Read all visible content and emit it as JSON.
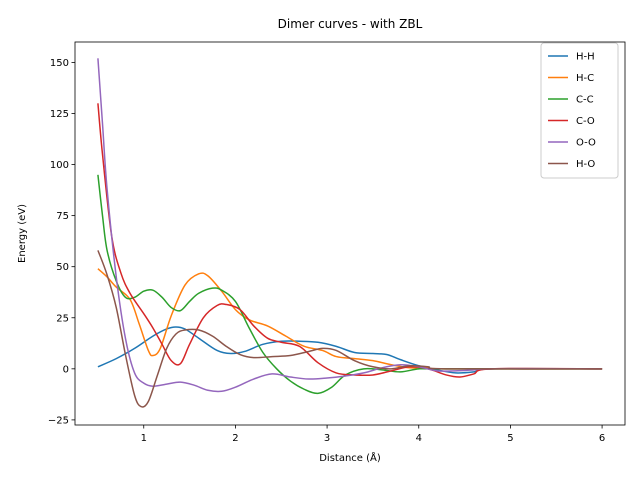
{
  "chart_data": {
    "type": "line",
    "title": "Dimer curves - with ZBL",
    "xlabel": "Distance (Å)",
    "ylabel": "Energy (eV)",
    "xlim": [
      0.25,
      6.25
    ],
    "ylim": [
      -27.5,
      160
    ],
    "xticks": [
      1,
      2,
      3,
      4,
      5,
      6
    ],
    "yticks": [
      -25,
      0,
      25,
      50,
      75,
      100,
      125,
      150
    ],
    "grid": false,
    "legend_position": "top-right",
    "series": [
      {
        "name": "H-H",
        "color": "#1f77b4",
        "points": [
          [
            0.5,
            1
          ],
          [
            0.7,
            5
          ],
          [
            0.9,
            10
          ],
          [
            1.1,
            16
          ],
          [
            1.25,
            19.5
          ],
          [
            1.35,
            20.5
          ],
          [
            1.45,
            19.5
          ],
          [
            1.6,
            15
          ],
          [
            1.8,
            9
          ],
          [
            1.95,
            7.5
          ],
          [
            2.1,
            8.5
          ],
          [
            2.3,
            12
          ],
          [
            2.5,
            13.5
          ],
          [
            2.7,
            13.5
          ],
          [
            2.9,
            13
          ],
          [
            3.1,
            11
          ],
          [
            3.3,
            8
          ],
          [
            3.5,
            7.5
          ],
          [
            3.65,
            7
          ],
          [
            3.8,
            4.5
          ],
          [
            4.0,
            1.5
          ],
          [
            4.2,
            -0.5
          ],
          [
            4.4,
            -2
          ],
          [
            4.6,
            -1.5
          ],
          [
            4.8,
            0
          ],
          [
            6.0,
            0
          ]
        ]
      },
      {
        "name": "H-C",
        "color": "#ff7f0e",
        "points": [
          [
            0.5,
            49
          ],
          [
            0.6,
            45
          ],
          [
            0.7,
            40
          ],
          [
            0.85,
            34
          ],
          [
            0.95,
            22
          ],
          [
            1.05,
            9
          ],
          [
            1.1,
            6.5
          ],
          [
            1.18,
            10
          ],
          [
            1.3,
            26
          ],
          [
            1.45,
            41
          ],
          [
            1.6,
            46.5
          ],
          [
            1.7,
            45.5
          ],
          [
            1.85,
            38
          ],
          [
            2.0,
            29
          ],
          [
            2.15,
            24
          ],
          [
            2.35,
            21
          ],
          [
            2.55,
            16
          ],
          [
            2.75,
            11
          ],
          [
            2.95,
            9
          ],
          [
            3.1,
            6
          ],
          [
            3.3,
            5
          ],
          [
            3.5,
            4
          ],
          [
            3.7,
            2
          ],
          [
            3.9,
            0.5
          ],
          [
            4.1,
            0.5
          ],
          [
            4.3,
            0
          ],
          [
            6.0,
            0
          ]
        ]
      },
      {
        "name": "C-C",
        "color": "#2ca02c",
        "points": [
          [
            0.5,
            95
          ],
          [
            0.55,
            75
          ],
          [
            0.6,
            58
          ],
          [
            0.7,
            43
          ],
          [
            0.8,
            35
          ],
          [
            0.9,
            35
          ],
          [
            1.0,
            38
          ],
          [
            1.1,
            38.5
          ],
          [
            1.2,
            35
          ],
          [
            1.3,
            30
          ],
          [
            1.4,
            28.5
          ],
          [
            1.5,
            33
          ],
          [
            1.6,
            37
          ],
          [
            1.75,
            39.5
          ],
          [
            1.85,
            38.5
          ],
          [
            2.0,
            33
          ],
          [
            2.15,
            20
          ],
          [
            2.3,
            8
          ],
          [
            2.45,
            0
          ],
          [
            2.6,
            -6
          ],
          [
            2.75,
            -10
          ],
          [
            2.9,
            -12
          ],
          [
            3.05,
            -9
          ],
          [
            3.2,
            -3
          ],
          [
            3.4,
            0
          ],
          [
            3.6,
            -0.5
          ],
          [
            3.8,
            -1.5
          ],
          [
            4.0,
            0
          ],
          [
            4.2,
            0
          ],
          [
            6.0,
            0
          ]
        ]
      },
      {
        "name": "C-O",
        "color": "#d62728",
        "points": [
          [
            0.5,
            130
          ],
          [
            0.55,
            105
          ],
          [
            0.65,
            65
          ],
          [
            0.75,
            47
          ],
          [
            0.85,
            37
          ],
          [
            1.0,
            27
          ],
          [
            1.1,
            20
          ],
          [
            1.2,
            12
          ],
          [
            1.3,
            4
          ],
          [
            1.4,
            2.5
          ],
          [
            1.5,
            12
          ],
          [
            1.65,
            25
          ],
          [
            1.8,
            31
          ],
          [
            1.9,
            31.5
          ],
          [
            2.05,
            29
          ],
          [
            2.2,
            21
          ],
          [
            2.35,
            15
          ],
          [
            2.5,
            13
          ],
          [
            2.7,
            11
          ],
          [
            2.9,
            3
          ],
          [
            3.1,
            -2
          ],
          [
            3.3,
            -3
          ],
          [
            3.5,
            -3
          ],
          [
            3.7,
            -1
          ],
          [
            3.9,
            1
          ],
          [
            4.1,
            0
          ],
          [
            4.3,
            -3
          ],
          [
            4.45,
            -4
          ],
          [
            4.6,
            -2.5
          ],
          [
            4.8,
            0
          ],
          [
            6.0,
            0
          ]
        ]
      },
      {
        "name": "O-O",
        "color": "#9467bd",
        "points": [
          [
            0.5,
            152
          ],
          [
            0.55,
            120
          ],
          [
            0.6,
            88
          ],
          [
            0.7,
            45
          ],
          [
            0.8,
            15
          ],
          [
            0.9,
            -2
          ],
          [
            1.0,
            -7
          ],
          [
            1.1,
            -8.5
          ],
          [
            1.25,
            -7.5
          ],
          [
            1.4,
            -6.5
          ],
          [
            1.55,
            -8
          ],
          [
            1.7,
            -10.5
          ],
          [
            1.85,
            -11
          ],
          [
            2.0,
            -9
          ],
          [
            2.2,
            -5
          ],
          [
            2.4,
            -2.5
          ],
          [
            2.6,
            -4
          ],
          [
            2.8,
            -5
          ],
          [
            3.0,
            -4.5
          ],
          [
            3.2,
            -3.5
          ],
          [
            3.4,
            -2
          ],
          [
            3.6,
            0.5
          ],
          [
            3.8,
            2
          ],
          [
            4.0,
            1
          ],
          [
            4.2,
            -1
          ],
          [
            4.4,
            -1
          ],
          [
            4.6,
            -0.5
          ],
          [
            4.8,
            0
          ],
          [
            6.0,
            0
          ]
        ]
      },
      {
        "name": "H-O",
        "color": "#8c564b",
        "points": [
          [
            0.5,
            58
          ],
          [
            0.6,
            46
          ],
          [
            0.7,
            30
          ],
          [
            0.8,
            7
          ],
          [
            0.9,
            -13
          ],
          [
            0.97,
            -18.5
          ],
          [
            1.05,
            -16
          ],
          [
            1.15,
            -3
          ],
          [
            1.25,
            10
          ],
          [
            1.35,
            17
          ],
          [
            1.45,
            19
          ],
          [
            1.6,
            19
          ],
          [
            1.75,
            16
          ],
          [
            1.9,
            11
          ],
          [
            2.05,
            7
          ],
          [
            2.2,
            5.5
          ],
          [
            2.4,
            6
          ],
          [
            2.6,
            6.5
          ],
          [
            2.8,
            8.5
          ],
          [
            2.95,
            10
          ],
          [
            3.1,
            9
          ],
          [
            3.3,
            4
          ],
          [
            3.5,
            1
          ],
          [
            3.7,
            0
          ],
          [
            3.9,
            1.5
          ],
          [
            4.1,
            1
          ],
          [
            4.3,
            0
          ],
          [
            6.0,
            0
          ]
        ]
      }
    ]
  }
}
